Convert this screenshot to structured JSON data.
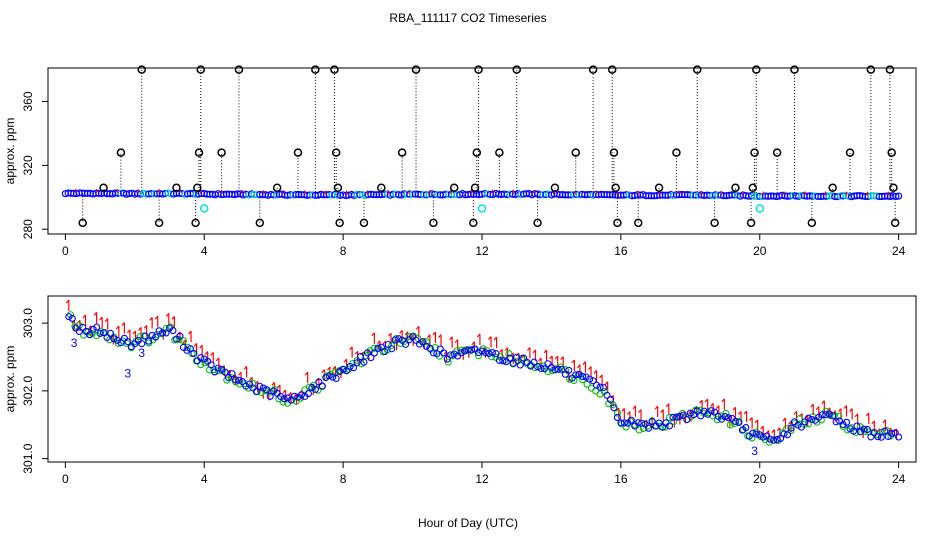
{
  "chart_data": [
    {
      "type": "scatter",
      "title": "RBA_111117  CO2 Timeseries",
      "xlabel": "",
      "ylabel": "approx. ppm",
      "xlim": [
        -0.5,
        24.5
      ],
      "ylim": [
        277,
        381
      ],
      "x_ticks": [
        0,
        4,
        8,
        12,
        16,
        20,
        24
      ],
      "y_ticks": [
        280,
        320,
        360
      ],
      "baseline": {
        "x": [
          0,
          1,
          2,
          3,
          4,
          5,
          6,
          7,
          8,
          9,
          10,
          11,
          12,
          13,
          14,
          15,
          16,
          17,
          18,
          19,
          19.8,
          20,
          21,
          22,
          23,
          24
        ],
        "y": [
          302.5,
          302.4,
          302.2,
          302.3,
          302.0,
          301.8,
          301.6,
          301.5,
          301.4,
          301.6,
          301.8,
          301.9,
          302.0,
          302.0,
          301.8,
          301.6,
          301.3,
          301.3,
          301.4,
          301.2,
          300.9,
          300.8,
          300.9,
          300.8,
          300.7,
          300.7
        ]
      },
      "cyan_points": [
        {
          "x": 4.0,
          "y": 293
        },
        {
          "x": 12.0,
          "y": 293
        },
        {
          "x": 20.0,
          "y": 293
        }
      ],
      "outliers": [
        {
          "x": 0.5,
          "y": 284
        },
        {
          "x": 1.1,
          "y": 306
        },
        {
          "x": 1.6,
          "y": 328
        },
        {
          "x": 2.2,
          "y": 380
        },
        {
          "x": 2.7,
          "y": 284
        },
        {
          "x": 3.2,
          "y": 306
        },
        {
          "x": 3.75,
          "y": 284
        },
        {
          "x": 3.8,
          "y": 306
        },
        {
          "x": 3.85,
          "y": 328
        },
        {
          "x": 3.9,
          "y": 380
        },
        {
          "x": 4.5,
          "y": 328
        },
        {
          "x": 5.0,
          "y": 380
        },
        {
          "x": 5.6,
          "y": 284
        },
        {
          "x": 6.1,
          "y": 306
        },
        {
          "x": 6.7,
          "y": 328
        },
        {
          "x": 7.2,
          "y": 380
        },
        {
          "x": 7.75,
          "y": 380
        },
        {
          "x": 7.8,
          "y": 328
        },
        {
          "x": 7.85,
          "y": 306
        },
        {
          "x": 7.9,
          "y": 284
        },
        {
          "x": 8.6,
          "y": 284
        },
        {
          "x": 9.1,
          "y": 306
        },
        {
          "x": 9.7,
          "y": 328
        },
        {
          "x": 10.1,
          "y": 380
        },
        {
          "x": 10.6,
          "y": 284
        },
        {
          "x": 11.2,
          "y": 306
        },
        {
          "x": 11.75,
          "y": 284
        },
        {
          "x": 11.8,
          "y": 306
        },
        {
          "x": 11.85,
          "y": 328
        },
        {
          "x": 11.9,
          "y": 380
        },
        {
          "x": 12.5,
          "y": 328
        },
        {
          "x": 13.0,
          "y": 380
        },
        {
          "x": 13.6,
          "y": 284
        },
        {
          "x": 14.1,
          "y": 306
        },
        {
          "x": 14.7,
          "y": 328
        },
        {
          "x": 15.2,
          "y": 380
        },
        {
          "x": 15.75,
          "y": 380
        },
        {
          "x": 15.8,
          "y": 328
        },
        {
          "x": 15.85,
          "y": 306
        },
        {
          "x": 15.9,
          "y": 284
        },
        {
          "x": 16.5,
          "y": 284
        },
        {
          "x": 17.1,
          "y": 306
        },
        {
          "x": 17.6,
          "y": 328
        },
        {
          "x": 18.2,
          "y": 380
        },
        {
          "x": 18.7,
          "y": 284
        },
        {
          "x": 19.3,
          "y": 306
        },
        {
          "x": 19.75,
          "y": 284
        },
        {
          "x": 19.8,
          "y": 306
        },
        {
          "x": 19.85,
          "y": 328
        },
        {
          "x": 19.9,
          "y": 380
        },
        {
          "x": 20.5,
          "y": 328
        },
        {
          "x": 21.0,
          "y": 380
        },
        {
          "x": 21.5,
          "y": 284
        },
        {
          "x": 22.1,
          "y": 306
        },
        {
          "x": 22.6,
          "y": 328
        },
        {
          "x": 23.2,
          "y": 380
        },
        {
          "x": 23.75,
          "y": 380
        },
        {
          "x": 23.8,
          "y": 328
        },
        {
          "x": 23.85,
          "y": 306
        },
        {
          "x": 23.9,
          "y": 284
        }
      ],
      "colors": {
        "baseline": "#0000ff",
        "baseline_accent": "#00c8c8",
        "outlier": "#000000",
        "cyan": "#00e0e0",
        "red": "#ff0000"
      }
    },
    {
      "type": "scatter",
      "title": "",
      "xlabel": "Hour of Day (UTC)",
      "ylabel": "approx. ppm",
      "xlim": [
        -0.5,
        24.5
      ],
      "ylim": [
        300.95,
        303.4
      ],
      "x_ticks": [
        0,
        4,
        8,
        12,
        16,
        20,
        24
      ],
      "y_ticks": [
        301.0,
        302.0,
        303.0
      ],
      "y_tick_labels": [
        "301.0",
        "302.0",
        "303.0"
      ],
      "series": [
        {
          "name": "1",
          "color": "#ff0000"
        },
        {
          "name": "2",
          "color": "#00c000"
        },
        {
          "name": "3",
          "color": "#0000ff"
        }
      ],
      "trend": {
        "x": [
          0.1,
          0.3,
          0.6,
          1.0,
          1.5,
          2.0,
          2.5,
          3.0,
          3.4,
          3.8,
          4.2,
          4.8,
          5.4,
          6.0,
          6.5,
          7.0,
          7.5,
          8.0,
          8.5,
          9.0,
          9.5,
          10.0,
          10.5,
          11.0,
          11.5,
          12.0,
          12.5,
          13.0,
          13.5,
          14.0,
          14.5,
          15.0,
          15.5,
          16.0,
          16.5,
          17.0,
          17.5,
          18.0,
          18.5,
          19.0,
          19.5,
          20.0,
          20.5,
          21.0,
          21.5,
          22.0,
          22.5,
          23.0,
          23.5,
          23.9
        ],
        "y": [
          303.15,
          302.95,
          302.85,
          302.9,
          302.75,
          302.7,
          302.8,
          302.9,
          302.7,
          302.5,
          302.35,
          302.2,
          302.05,
          301.95,
          301.85,
          302.0,
          302.15,
          302.3,
          302.45,
          302.6,
          302.7,
          302.75,
          302.65,
          302.5,
          302.55,
          302.6,
          302.5,
          302.45,
          302.4,
          302.35,
          302.25,
          302.15,
          302.0,
          301.55,
          301.5,
          301.5,
          301.55,
          301.65,
          301.7,
          301.6,
          301.45,
          301.3,
          301.25,
          301.5,
          301.55,
          301.65,
          301.5,
          301.4,
          301.35,
          301.35
        ]
      },
      "annotations": [
        {
          "text": "3",
          "x": 0.25,
          "y": 302.65
        },
        {
          "text": "3",
          "x": 1.8,
          "y": 302.2
        },
        {
          "text": "3",
          "x": 2.2,
          "y": 302.5
        },
        {
          "text": "3",
          "x": 19.85,
          "y": 301.05
        }
      ]
    }
  ]
}
